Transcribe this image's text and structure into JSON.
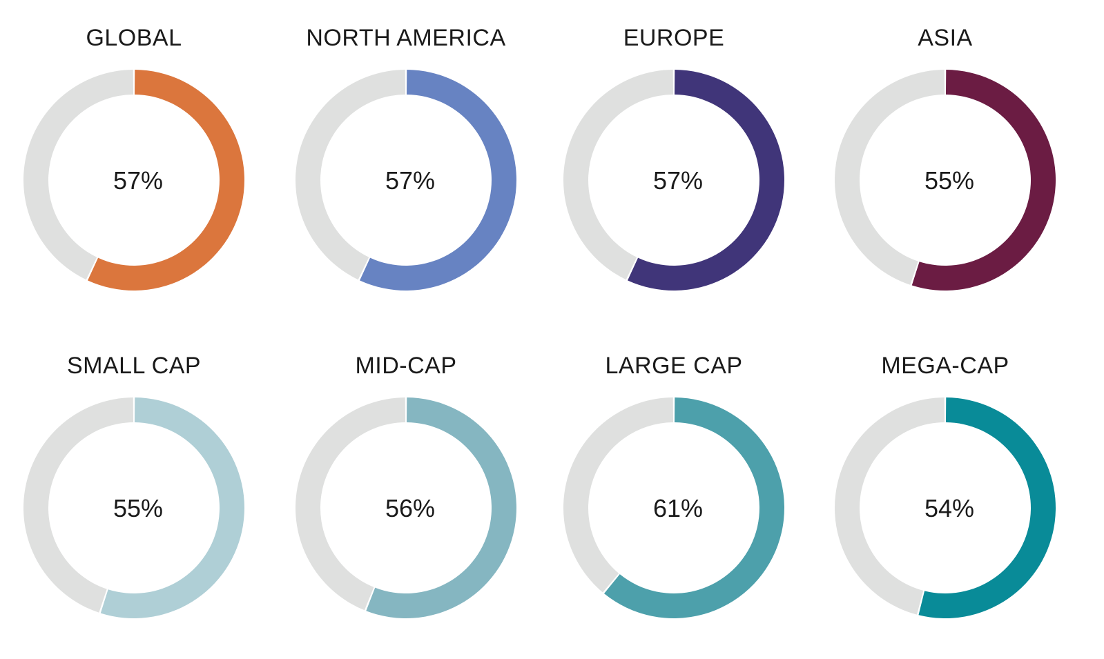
{
  "chart_data": [
    {
      "type": "pie",
      "title": "GLOBAL",
      "values": [
        57,
        43
      ],
      "value_label": "57%",
      "colors": [
        "#DB763D",
        "#DFE0DF"
      ]
    },
    {
      "type": "pie",
      "title": "NORTH AMERICA",
      "values": [
        57,
        43
      ],
      "value_label": "57%",
      "colors": [
        "#6783C2",
        "#DFE0DF"
      ]
    },
    {
      "type": "pie",
      "title": "EUROPE",
      "values": [
        57,
        43
      ],
      "value_label": "57%",
      "colors": [
        "#403579",
        "#DFE0DF"
      ]
    },
    {
      "type": "pie",
      "title": "ASIA",
      "values": [
        55,
        45
      ],
      "value_label": "55%",
      "colors": [
        "#6B1C43",
        "#DFE0DF"
      ]
    },
    {
      "type": "pie",
      "title": "SMALL CAP",
      "values": [
        55,
        45
      ],
      "value_label": "55%",
      "colors": [
        "#AFCFD6",
        "#DFE0DF"
      ]
    },
    {
      "type": "pie",
      "title": "MID-CAP",
      "values": [
        56,
        44
      ],
      "value_label": "56%",
      "colors": [
        "#85B6C1",
        "#DFE0DF"
      ]
    },
    {
      "type": "pie",
      "title": "LARGE CAP",
      "values": [
        61,
        39
      ],
      "value_label": "61%",
      "colors": [
        "#4DA0AB",
        "#DFE0DF"
      ]
    },
    {
      "type": "pie",
      "title": "MEGA-CAP",
      "values": [
        54,
        46
      ],
      "value_label": "54%",
      "colors": [
        "#098B98",
        "#DFE0DF"
      ]
    }
  ]
}
